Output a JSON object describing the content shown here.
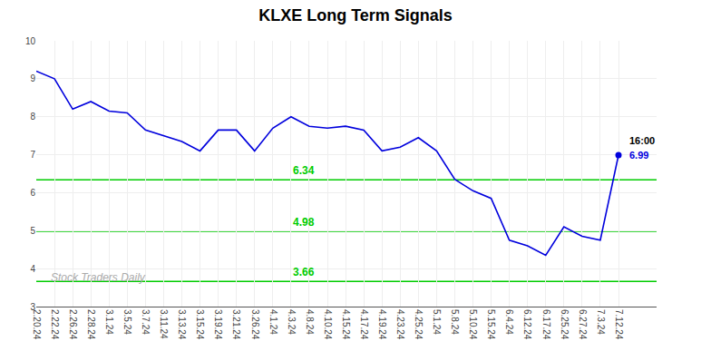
{
  "chart_data": {
    "type": "line",
    "title": "KLXE Long Term Signals",
    "categories": [
      "2.20.24",
      "2.22.24",
      "2.26.24",
      "2.28.24",
      "3.1.24",
      "3.5.24",
      "3.7.24",
      "3.11.24",
      "3.13.24",
      "3.15.24",
      "3.19.24",
      "3.21.24",
      "3.26.24",
      "4.1.24",
      "4.3.24",
      "4.8.24",
      "4.10.24",
      "4.15.24",
      "4.17.24",
      "4.19.24",
      "4.23.24",
      "4.25.24",
      "5.1.24",
      "5.8.24",
      "5.10.24",
      "5.15.24",
      "6.4.24",
      "6.12.24",
      "6.17.24",
      "6.25.24",
      "6.27.24",
      "7.3.24",
      "7.12.24"
    ],
    "values": [
      9.2,
      9.0,
      8.2,
      8.4,
      8.15,
      8.1,
      7.65,
      7.5,
      7.35,
      7.1,
      7.65,
      7.65,
      7.1,
      7.7,
      8.0,
      7.75,
      7.7,
      7.75,
      7.65,
      7.1,
      7.2,
      7.45,
      7.1,
      6.35,
      6.05,
      5.85,
      4.75,
      4.6,
      4.35,
      5.1,
      4.85,
      4.75,
      6.99
    ],
    "color": "#0000dd",
    "hlines": [
      {
        "value": 6.34,
        "label": "6.34",
        "color": "#00cc00"
      },
      {
        "value": 4.98,
        "label": "4.98",
        "color": "#00cc00"
      },
      {
        "value": 3.66,
        "label": "3.66",
        "color": "#00cc00"
      }
    ],
    "last_point": {
      "time": "16:00",
      "value": 6.99,
      "label": "6.99"
    },
    "watermark": {
      "text": "Stock Traders Daily",
      "color": "#aaaaaa"
    },
    "ylim": [
      3,
      10
    ],
    "yticks": [
      3,
      4,
      5,
      6,
      7,
      8,
      9,
      10
    ],
    "grid": true
  }
}
